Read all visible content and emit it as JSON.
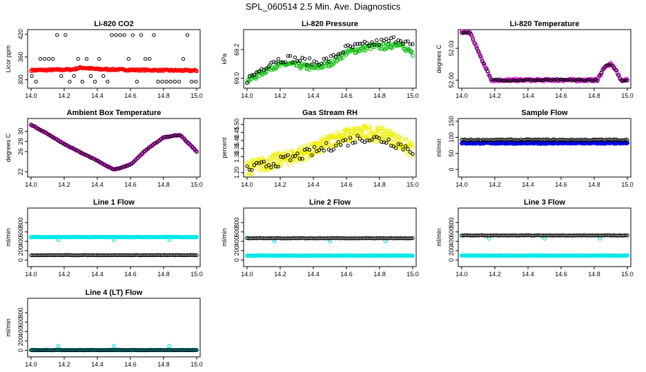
{
  "page_title": "SPL_060514  2.5 Min. Ave. Diagnostics",
  "colors": {
    "black": "#000000",
    "red": "#ff0000",
    "green": "#1ec01e",
    "magenta": "#e61ee6",
    "yellow": "#f0f000",
    "blue": "#0000e0",
    "cyan": "#00e8e8"
  },
  "chart_data": [
    {
      "type": "scatter",
      "title": "Li-820 CO2",
      "ylabel": "Licor ppm",
      "xlim": [
        14.0,
        15.0
      ],
      "ylim": [
        285,
        425
      ],
      "xticks": [
        "14.0",
        "14.2",
        "14.4",
        "14.6",
        "14.8",
        "15.0"
      ],
      "yticks": [
        "300",
        "360",
        "420"
      ],
      "series": [
        {
          "name": "Li-820 CO2 (points)",
          "color": "red",
          "profile": [
            [
              14.0,
              325
            ],
            [
              14.25,
              327
            ],
            [
              14.3,
              332
            ],
            [
              14.4,
              328
            ],
            [
              14.6,
              326
            ],
            [
              14.8,
              325
            ],
            [
              15.0,
              324
            ]
          ],
          "noise": 2,
          "n": 180
        },
        {
          "name": "Li-820 CO2 (markers)",
          "color": "black",
          "levels": [
            295,
            310,
            355,
            418
          ],
          "n": 40
        }
      ]
    },
    {
      "type": "scatter",
      "title": "Li-820 Pressure",
      "ylabel": "kPa",
      "xlim": [
        14.0,
        15.0
      ],
      "ylim": [
        68.95,
        69.32
      ],
      "xticks": [
        "14.0",
        "14.2",
        "14.4",
        "14.6",
        "14.8",
        "15.0"
      ],
      "yticks": [
        "69.0",
        "69.2"
      ],
      "series": [
        {
          "name": "Li-820 Pressure (points)",
          "color": "green",
          "profile": [
            [
              14.0,
              68.98
            ],
            [
              14.15,
              69.08
            ],
            [
              14.25,
              69.1
            ],
            [
              14.4,
              69.07
            ],
            [
              14.5,
              69.1
            ],
            [
              14.6,
              69.18
            ],
            [
              14.75,
              69.22
            ],
            [
              14.85,
              69.22
            ],
            [
              14.92,
              69.25
            ],
            [
              14.95,
              69.2
            ],
            [
              15.0,
              69.17
            ]
          ],
          "noise": 0.02,
          "n": 190
        },
        {
          "name": "Li-820 Pressure (markers)",
          "color": "black",
          "profile": [
            [
              14.0,
              68.99
            ],
            [
              14.15,
              69.12
            ],
            [
              14.25,
              69.14
            ],
            [
              14.4,
              69.11
            ],
            [
              14.5,
              69.13
            ],
            [
              14.6,
              69.21
            ],
            [
              14.75,
              69.24
            ],
            [
              14.85,
              69.26
            ],
            [
              14.92,
              69.28
            ],
            [
              15.0,
              69.22
            ]
          ],
          "noise": 0.025,
          "n": 70
        }
      ]
    },
    {
      "type": "scatter",
      "title": "Li-820 Temperature",
      "ylabel": "degrees C",
      "xlim": [
        14.0,
        15.0
      ],
      "ylim": [
        51.995,
        52.045
      ],
      "xticks": [
        "14.0",
        "14.2",
        "14.4",
        "14.6",
        "14.8",
        "15.0"
      ],
      "yticks": [
        "52.00",
        "52.03"
      ],
      "ytickextra": [
        "52.00"
      ],
      "series": [
        {
          "name": "Li-820 Temperature (points)",
          "color": "magenta",
          "profile": [
            [
              14.0,
              52.045
            ],
            [
              14.05,
              52.045
            ],
            [
              14.12,
              52.02
            ],
            [
              14.18,
              52.0
            ],
            [
              14.82,
              52.0
            ],
            [
              14.86,
              52.012
            ],
            [
              14.9,
              52.015
            ],
            [
              14.93,
              52.01
            ],
            [
              14.96,
              52.0
            ],
            [
              15.0,
              52.0
            ]
          ],
          "noise": 0.0012,
          "n": 200
        },
        {
          "name": "Li-820 Temperature (markers)",
          "color": "black",
          "profile": [
            [
              14.0,
              52.045
            ],
            [
              14.05,
              52.045
            ],
            [
              14.12,
              52.02
            ],
            [
              14.18,
              52.0
            ],
            [
              14.82,
              52.0
            ],
            [
              14.86,
              52.012
            ],
            [
              14.9,
              52.015
            ],
            [
              14.93,
              52.01
            ],
            [
              14.96,
              52.0
            ],
            [
              15.0,
              52.0
            ]
          ],
          "noise": 0.0008,
          "n": 90
        }
      ]
    },
    {
      "type": "scatter",
      "title": "Ambient Box Temperature",
      "ylabel": "degrees C",
      "xlim": [
        14.0,
        15.0
      ],
      "ylim": [
        21.5,
        32
      ],
      "xticks": [
        "14.0",
        "14.2",
        "14.4",
        "14.6",
        "14.8",
        "15.0"
      ],
      "yticks": [
        "22",
        "26",
        "28",
        "30"
      ],
      "series": [
        {
          "name": "Ambient Box Temperature (points)",
          "color": "magenta",
          "profile": [
            [
              14.0,
              31.3
            ],
            [
              14.1,
              29.5
            ],
            [
              14.2,
              27.5
            ],
            [
              14.3,
              25.8
            ],
            [
              14.4,
              24.2
            ],
            [
              14.5,
              22.4
            ],
            [
              14.6,
              23.4
            ],
            [
              14.7,
              26.5
            ],
            [
              14.8,
              28.8
            ],
            [
              14.9,
              29.3
            ],
            [
              15.0,
              26.0
            ]
          ],
          "noise": 0.1,
          "n": 200
        },
        {
          "name": "Ambient Box Temperature (markers)",
          "color": "black",
          "profile": [
            [
              14.0,
              31.3
            ],
            [
              14.1,
              29.5
            ],
            [
              14.2,
              27.5
            ],
            [
              14.3,
              25.8
            ],
            [
              14.4,
              24.2
            ],
            [
              14.5,
              22.4
            ],
            [
              14.6,
              23.4
            ],
            [
              14.7,
              26.5
            ],
            [
              14.8,
              28.8
            ],
            [
              14.9,
              29.3
            ],
            [
              15.0,
              26.0
            ]
          ],
          "noise": 0.08,
          "n": 80
        }
      ]
    },
    {
      "type": "scatter",
      "title": "Gas Stream RH",
      "ylabel": "percent",
      "xlim": [
        14.0,
        15.0
      ],
      "ylim": [
        1.19,
        1.52
      ],
      "xticks": [
        "14.0",
        "14.2",
        "14.4",
        "14.6",
        "14.8",
        "15.0"
      ],
      "yticks": [
        "1.20",
        "1.30",
        "1.35",
        "1.40",
        "1.45",
        "1.50"
      ],
      "series": [
        {
          "name": "Gas Stream RH (points)",
          "color": "yellow",
          "profile": [
            [
              14.0,
              1.23
            ],
            [
              14.2,
              1.28
            ],
            [
              14.4,
              1.34
            ],
            [
              14.55,
              1.42
            ],
            [
              14.7,
              1.45
            ],
            [
              14.85,
              1.43
            ],
            [
              15.0,
              1.34
            ]
          ],
          "noise": 0.045,
          "n": 320
        },
        {
          "name": "Gas Stream RH (markers)",
          "color": "black",
          "profile": [
            [
              14.0,
              1.22
            ],
            [
              14.2,
              1.27
            ],
            [
              14.4,
              1.33
            ],
            [
              14.55,
              1.38
            ],
            [
              14.7,
              1.42
            ],
            [
              14.85,
              1.4
            ],
            [
              15.0,
              1.34
            ]
          ],
          "noise": 0.03,
          "n": 70
        }
      ]
    },
    {
      "type": "scatter",
      "title": "Sample Flow",
      "ylabel": "ml/min",
      "xlim": [
        14.0,
        15.0
      ],
      "ylim": [
        -15,
        150
      ],
      "xticks": [
        "14.0",
        "14.2",
        "14.4",
        "14.6",
        "14.8",
        "15.0"
      ],
      "yticks": [
        "0",
        "50",
        "100",
        "150"
      ],
      "series": [
        {
          "name": "Sample Flow (points)",
          "color": "blue",
          "profile": [
            [
              14.0,
              82
            ],
            [
              15.0,
              82
            ]
          ],
          "noise": 2,
          "n": 240
        },
        {
          "name": "Sample Flow (markers)",
          "color": "black",
          "profile": [
            [
              14.0,
              92
            ],
            [
              15.0,
              92
            ]
          ],
          "noise": 2,
          "n": 110
        }
      ]
    },
    {
      "type": "scatter",
      "title": "Line 1 Flow",
      "ylabel": "ml/min",
      "xlim": [
        14.0,
        15.0
      ],
      "ylim": [
        -80,
        1050
      ],
      "xticks": [
        "14.0",
        "14.2",
        "14.4",
        "14.6",
        "14.8",
        "15.0"
      ],
      "yticks": [
        "0",
        "200",
        "400",
        "600",
        "800"
      ],
      "series": [
        {
          "name": "Line 1 Flow (points)",
          "color": "cyan",
          "profile": [
            [
              14.0,
              490
            ],
            [
              15.0,
              490
            ]
          ],
          "noise": 4,
          "n": 200,
          "spikes": [
            [
              14.165,
              430
            ],
            [
              14.5,
              430
            ],
            [
              14.835,
              430
            ]
          ]
        },
        {
          "name": "Line 1 Flow (markers)",
          "color": "black",
          "profile": [
            [
              14.0,
              105
            ],
            [
              15.0,
              105
            ]
          ],
          "noise": 4,
          "n": 110
        }
      ]
    },
    {
      "type": "scatter",
      "title": "Line 2 Flow",
      "ylabel": "ml/min",
      "xlim": [
        14.0,
        15.0
      ],
      "ylim": [
        -80,
        1050
      ],
      "xticks": [
        "14.0",
        "14.2",
        "14.4",
        "14.6",
        "14.8",
        "15.0"
      ],
      "yticks": [
        "0",
        "200",
        "400",
        "600",
        "800"
      ],
      "series": [
        {
          "name": "Line 2 Flow (points)",
          "color": "cyan",
          "profile": [
            [
              14.0,
              95
            ],
            [
              15.0,
              95
            ]
          ],
          "noise": 4,
          "n": 200,
          "spikes": [
            [
              14.0,
              475
            ],
            [
              14.165,
              405
            ],
            [
              14.5,
              405
            ],
            [
              14.835,
              405
            ]
          ]
        },
        {
          "name": "Line 2 Flow (markers)",
          "color": "black",
          "profile": [
            [
              14.02,
              465
            ],
            [
              15.0,
              465
            ]
          ],
          "noise": 4,
          "n": 110
        }
      ]
    },
    {
      "type": "scatter",
      "title": "Line 3 Flow",
      "ylabel": "ml/min",
      "xlim": [
        14.0,
        15.0
      ],
      "ylim": [
        -80,
        1050
      ],
      "xticks": [
        "14.0",
        "14.2",
        "14.4",
        "14.6",
        "14.8",
        "15.0"
      ],
      "yticks": [
        "0",
        "200",
        "400",
        "600",
        "800"
      ],
      "series": [
        {
          "name": "Line 3 Flow (points)",
          "color": "cyan",
          "profile": [
            [
              14.0,
              95
            ],
            [
              15.0,
              95
            ]
          ],
          "noise": 4,
          "n": 200,
          "spikes": [
            [
              14.0,
              525
            ],
            [
              14.165,
              460
            ],
            [
              14.5,
              460
            ],
            [
              14.835,
              460
            ]
          ]
        },
        {
          "name": "Line 3 Flow (markers)",
          "color": "black",
          "profile": [
            [
              14.04,
              525
            ],
            [
              15.0,
              525
            ]
          ],
          "noise": 4,
          "n": 110
        }
      ]
    },
    {
      "type": "scatter",
      "title": "Line 4 (LT) Flow",
      "ylabel": "ml/min",
      "xlim": [
        14.0,
        15.0
      ],
      "ylim": [
        -80,
        1050
      ],
      "xticks": [
        "14.0",
        "14.2",
        "14.4",
        "14.6",
        "14.8",
        "15.0"
      ],
      "yticks": [
        "0",
        "200",
        "400",
        "600",
        "800"
      ],
      "series": [
        {
          "name": "Line 4 (LT) Flow (points)",
          "color": "cyan",
          "profile": [
            [
              14.0,
              5
            ],
            [
              15.0,
              5
            ]
          ],
          "noise": 3,
          "n": 200,
          "spikes": [
            [
              14.165,
              90
            ],
            [
              14.5,
              90
            ],
            [
              14.835,
              90
            ]
          ]
        },
        {
          "name": "Line 4 (LT) Flow (markers)",
          "color": "black",
          "profile": [
            [
              14.0,
              5
            ],
            [
              15.0,
              5
            ]
          ],
          "noise": 3,
          "n": 110
        }
      ]
    }
  ]
}
